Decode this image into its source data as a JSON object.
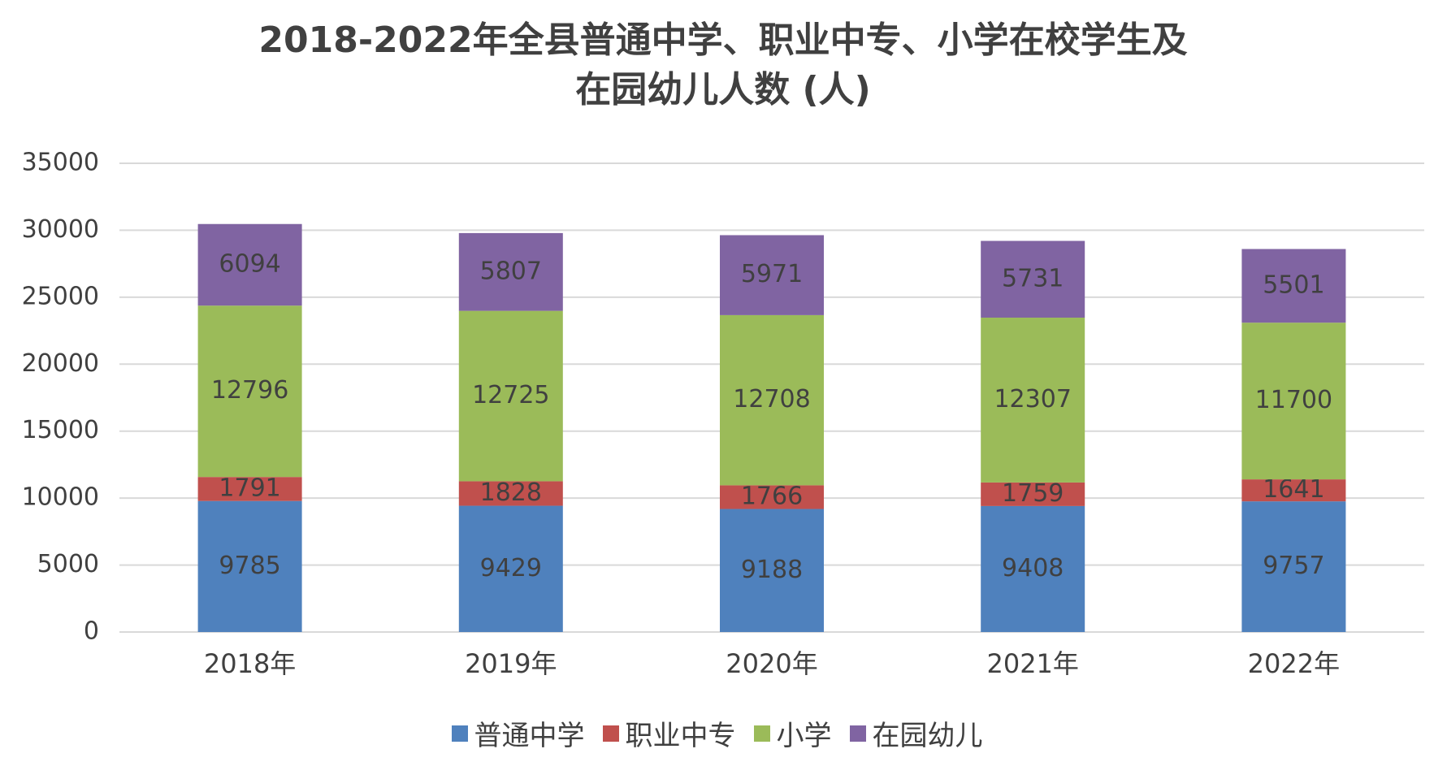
{
  "chart_data": {
    "type": "stacked_bar",
    "title": [
      "2018-2022年全县普通中学、职业中专、小学在校学生及",
      "在园幼儿人数 (人)"
    ],
    "categories": [
      "2018年",
      "2019年",
      "2020年",
      "2021年",
      "2022年"
    ],
    "series": [
      {
        "name": "普通中学",
        "color": "#4f81bd",
        "values": [
          9785,
          9429,
          9188,
          9408,
          9757
        ]
      },
      {
        "name": "职业中专",
        "color": "#c0504d",
        "values": [
          1791,
          1828,
          1766,
          1759,
          1641
        ]
      },
      {
        "name": "小学",
        "color": "#9bbb59",
        "values": [
          12796,
          12725,
          12708,
          12307,
          11700
        ]
      },
      {
        "name": "在园幼儿",
        "color": "#8064a2",
        "values": [
          6094,
          5807,
          5971,
          5731,
          5501
        ]
      }
    ],
    "ylim": [
      0,
      35000
    ],
    "yticks": [
      0,
      5000,
      10000,
      15000,
      20000,
      25000,
      30000,
      35000
    ],
    "grid": true,
    "legend": "bottom"
  }
}
